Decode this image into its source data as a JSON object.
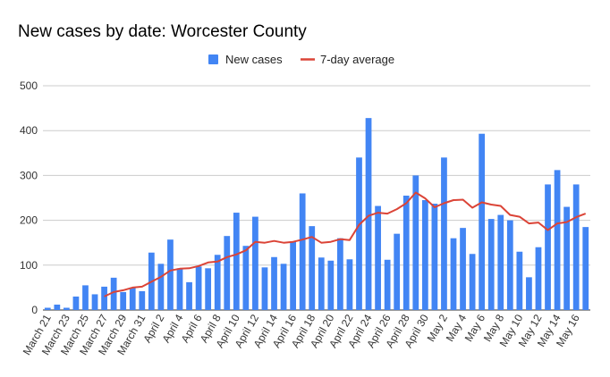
{
  "chart_data": {
    "type": "bar",
    "title": "New cases by date: Worcester County",
    "xlabel": "",
    "ylabel": "",
    "ylim": [
      0,
      500
    ],
    "yticks": [
      0,
      100,
      200,
      300,
      400,
      500
    ],
    "grid": true,
    "legend_position": "top",
    "categories": [
      "March 21",
      "March 22",
      "March 23",
      "March 24",
      "March 25",
      "March 26",
      "March 27",
      "March 28",
      "March 29",
      "March 30",
      "March 31",
      "April 1",
      "April 2",
      "April 3",
      "April 4",
      "April 5",
      "April 6",
      "April 7",
      "April 8",
      "April 9",
      "April 10",
      "April 11",
      "April 12",
      "April 13",
      "April 14",
      "April 15",
      "April 16",
      "April 17",
      "April 18",
      "April 19",
      "April 20",
      "April 21",
      "April 22",
      "April 23",
      "April 24",
      "April 25",
      "April 26",
      "April 27",
      "April 28",
      "April 29",
      "April 30",
      "May 1",
      "May 2",
      "May 3",
      "May 4",
      "May 5",
      "May 6",
      "May 7",
      "May 8",
      "May 9",
      "May 10",
      "May 11",
      "May 12",
      "May 13",
      "May 14",
      "May 15",
      "May 16",
      "May 17"
    ],
    "x_tick_labels": [
      "March 21",
      "March 23",
      "March 25",
      "March 27",
      "March 29",
      "March 31",
      "April 2",
      "April 4",
      "April 6",
      "April 8",
      "April 10",
      "April 12",
      "April 14",
      "April 16",
      "April 18",
      "April 20",
      "April 22",
      "April 24",
      "April 26",
      "April 28",
      "April 30",
      "May 2",
      "May 4",
      "May 6",
      "May 8",
      "May 10",
      "May 12",
      "May 14",
      "May 16"
    ],
    "series": [
      {
        "name": "New cases",
        "kind": "bar",
        "color": "#4285f4",
        "values": [
          5,
          12,
          5,
          30,
          55,
          35,
          52,
          72,
          40,
          50,
          42,
          128,
          103,
          157,
          93,
          62,
          97,
          93,
          123,
          165,
          217,
          143,
          208,
          95,
          118,
          103,
          153,
          260,
          187,
          117,
          110,
          160,
          113,
          340,
          428,
          232,
          112,
          170,
          255,
          300,
          245,
          237,
          340,
          160,
          183,
          125,
          393,
          203,
          212,
          200,
          130,
          73,
          140,
          280,
          312,
          230,
          280,
          185
        ]
      },
      {
        "name": "7-day average",
        "kind": "line",
        "color": "#db4437",
        "values": [
          null,
          null,
          null,
          null,
          null,
          null,
          30,
          40,
          44,
          50,
          52,
          63,
          74,
          88,
          92,
          93,
          98,
          106,
          108,
          118,
          124,
          133,
          152,
          150,
          154,
          150,
          152,
          157,
          163,
          150,
          152,
          158,
          156,
          190,
          210,
          217,
          215,
          225,
          238,
          262,
          249,
          229,
          238,
          245,
          246,
          228,
          240,
          235,
          232,
          212,
          208,
          193,
          195,
          178,
          193,
          196,
          207,
          215
        ]
      }
    ]
  }
}
